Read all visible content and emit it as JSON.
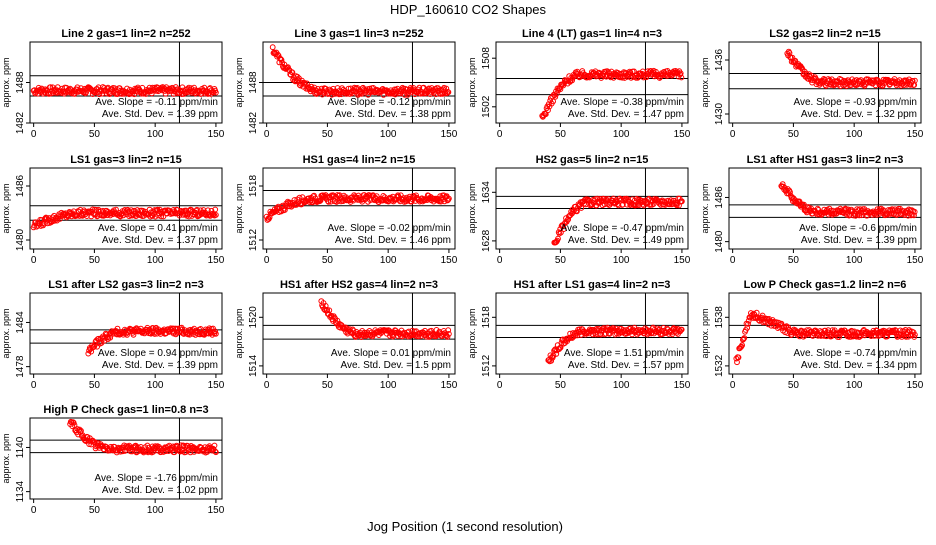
{
  "figure": {
    "title": "HDP_160610  CO2 Shapes",
    "xlabel": "Jog Position (1 second resolution)"
  },
  "colors": {
    "points": "#ff0000",
    "axes": "#000000",
    "background": "#ffffff"
  },
  "chart_data": [
    {
      "type": "scatter",
      "title": "Line 2 gas=1 lin=2 n=252",
      "ylabel": "approx. ppm",
      "xlim": [
        -3,
        155
      ],
      "ylim": [
        1482,
        1494
      ],
      "xticks": [
        0,
        50,
        100,
        150
      ],
      "yticks": [
        1482,
        1488
      ],
      "hlines": [
        1489,
        1486
      ],
      "vline": 120,
      "x_range": [
        0,
        150
      ],
      "y_levels": [
        1486.8
      ],
      "slope_text": "Ave. Slope = -0.11 ppm/min",
      "std_text": "Ave. Std. Dev. = 1.39 ppm"
    },
    {
      "type": "scatter",
      "title": "Line 3 gas=1 lin=3 n=252",
      "ylabel": "approx. ppm",
      "xlim": [
        -3,
        155
      ],
      "ylim": [
        1482,
        1494
      ],
      "xticks": [
        0,
        50,
        100,
        150
      ],
      "yticks": [
        1482,
        1488
      ],
      "hlines": [
        1488,
        1486
      ],
      "vline": 120,
      "x_range": [
        5,
        150
      ],
      "y_levels": [
        1493.0,
        1486.7
      ],
      "slope_text": "Ave. Slope = -0.12 ppm/min",
      "std_text": "Ave. Std. Dev. = 1.38 ppm"
    },
    {
      "type": "scatter",
      "title": "Line 4 (LT) gas=1 lin=4 n=3",
      "ylabel": "approx. ppm",
      "xlim": [
        -3,
        155
      ],
      "ylim": [
        1500,
        1510
      ],
      "xticks": [
        0,
        50,
        100,
        150
      ],
      "yticks": [
        1502,
        1508
      ],
      "hlines": [
        1505.5,
        1503.5
      ],
      "vline": 120,
      "x_range": [
        35,
        150
      ],
      "y_levels": [
        1500.5,
        1506.0
      ],
      "slope_text": "Ave. Slope = -0.38 ppm/min",
      "std_text": "Ave. Std. Dev. = 1.47 ppm"
    },
    {
      "type": "scatter",
      "title": "LS2 gas=2 lin=2 n=15",
      "ylabel": "approx. ppm",
      "xlim": [
        -3,
        155
      ],
      "ylim": [
        1429,
        1438
      ],
      "xticks": [
        0,
        50,
        100,
        150
      ],
      "yticks": [
        1430,
        1436
      ],
      "hlines": [
        1434.5,
        1432.8
      ],
      "vline": 120,
      "x_range": [
        45,
        150
      ],
      "y_levels": [
        1437.0,
        1433.5
      ],
      "slope_text": "Ave. Slope = -0.93 ppm/min",
      "std_text": "Ave. Std. Dev. = 1.32 ppm"
    },
    {
      "type": "scatter",
      "title": "LS1 gas=3 lin=2 n=15",
      "ylabel": "approx. ppm",
      "xlim": [
        -3,
        155
      ],
      "ylim": [
        1479,
        1488
      ],
      "xticks": [
        0,
        50,
        100,
        150
      ],
      "yticks": [
        1480,
        1486
      ],
      "hlines": [
        1483.8,
        1482.2
      ],
      "vline": 120,
      "x_range": [
        0,
        150
      ],
      "y_levels": [
        1481.5,
        1483.0
      ],
      "slope_text": "Ave. Slope = 0.41 ppm/min",
      "std_text": "Ave. Std. Dev. = 1.37 ppm"
    },
    {
      "type": "scatter",
      "title": "HS1 gas=4 lin=2 n=15",
      "ylabel": "approx. ppm",
      "xlim": [
        -3,
        155
      ],
      "ylim": [
        1511,
        1520
      ],
      "xticks": [
        0,
        50,
        100,
        150
      ],
      "yticks": [
        1512,
        1518
      ],
      "hlines": [
        1517.5,
        1515.8
      ],
      "vline": 120,
      "x_range": [
        0,
        150
      ],
      "y_levels": [
        1514.5,
        1516.6
      ],
      "slope_text": "Ave. Slope = -0.02 ppm/min",
      "std_text": "Ave. Std. Dev. = 1.46 ppm"
    },
    {
      "type": "scatter",
      "title": "HS2 gas=5 lin=2 n=15",
      "ylabel": "approx. ppm",
      "xlim": [
        -3,
        155
      ],
      "ylim": [
        1627,
        1637
      ],
      "xticks": [
        0,
        50,
        100,
        150
      ],
      "yticks": [
        1628,
        1634
      ],
      "hlines": [
        1633.5,
        1632.0
      ],
      "vline": 120,
      "x_range": [
        45,
        150
      ],
      "y_levels": [
        1627.5,
        1632.8
      ],
      "slope_text": "Ave. Slope = -0.47 ppm/min",
      "std_text": "Ave. Std. Dev. = 1.49 ppm"
    },
    {
      "type": "scatter",
      "title": "LS1 after HS1 gas=3 lin=2 n=3",
      "ylabel": "approx. ppm",
      "xlim": [
        -3,
        155
      ],
      "ylim": [
        1479,
        1490
      ],
      "xticks": [
        0,
        50,
        100,
        150
      ],
      "yticks": [
        1480,
        1486
      ],
      "hlines": [
        1485.0,
        1483.3
      ],
      "vline": 120,
      "x_range": [
        40,
        150
      ],
      "y_levels": [
        1488.0,
        1484.0
      ],
      "slope_text": "Ave. Slope = -0.6 ppm/min",
      "std_text": "Ave. Std. Dev. = 1.39 ppm"
    },
    {
      "type": "scatter",
      "title": "LS1 after LS2 gas=3 lin=2 n=3",
      "ylabel": "approx. ppm",
      "xlim": [
        -3,
        155
      ],
      "ylim": [
        1477,
        1488
      ],
      "xticks": [
        0,
        50,
        100,
        150
      ],
      "yticks": [
        1478,
        1484
      ],
      "hlines": [
        1483.0,
        1481.2
      ],
      "vline": 120,
      "x_range": [
        45,
        150
      ],
      "y_levels": [
        1480.0,
        1482.8
      ],
      "slope_text": "Ave. Slope = 0.94 ppm/min",
      "std_text": "Ave. Std. Dev. = 1.39 ppm"
    },
    {
      "type": "scatter",
      "title": "HS1 after HS2 gas=4 lin=2 n=3",
      "ylabel": "approx. ppm",
      "xlim": [
        -3,
        155
      ],
      "ylim": [
        1513,
        1523
      ],
      "xticks": [
        0,
        50,
        100,
        150
      ],
      "yticks": [
        1514,
        1520
      ],
      "hlines": [
        1519.0,
        1517.3
      ],
      "vline": 120,
      "x_range": [
        45,
        150
      ],
      "y_levels": [
        1522.0,
        1518.0
      ],
      "slope_text": "Ave. Slope = 0.01 ppm/min",
      "std_text": "Ave. Std. Dev. = 1.5 ppm"
    },
    {
      "type": "scatter",
      "title": "HS1 after LS1 gas=4 lin=2 n=3",
      "ylabel": "approx. ppm",
      "xlim": [
        -3,
        155
      ],
      "ylim": [
        1511,
        1521
      ],
      "xticks": [
        0,
        50,
        100,
        150
      ],
      "yticks": [
        1512,
        1518
      ],
      "hlines": [
        1517.0,
        1515.5
      ],
      "vline": 120,
      "x_range": [
        40,
        150
      ],
      "y_levels": [
        1512.5,
        1516.3
      ],
      "slope_text": "Ave. Slope = 1.51 ppm/min",
      "std_text": "Ave. Std. Dev. = 1.57 ppm"
    },
    {
      "type": "scatter",
      "title": "Low P Check gas=1.2 lin=2 n=6",
      "ylabel": "approx. ppm",
      "xlim": [
        -3,
        155
      ],
      "ylim": [
        1531,
        1541
      ],
      "xticks": [
        0,
        50,
        100,
        150
      ],
      "yticks": [
        1532,
        1538
      ],
      "hlines": [
        1537.0,
        1535.5
      ],
      "vline": 120,
      "x_range": [
        3,
        150
      ],
      "y_levels": [
        1532.5,
        1538.5,
        1536.0
      ],
      "slope_text": "Ave. Slope = -0.74 ppm/min",
      "std_text": "Ave. Std. Dev. = 1.34 ppm"
    },
    {
      "type": "scatter",
      "title": "High P Check gas=1 lin=0.8 n=3",
      "ylabel": "approx. ppm",
      "xlim": [
        -3,
        155
      ],
      "ylim": [
        1133,
        1144
      ],
      "xticks": [
        0,
        50,
        100,
        150
      ],
      "yticks": [
        1134,
        1140
      ],
      "hlines": [
        1141.0,
        1139.3
      ],
      "vline": 120,
      "x_range": [
        30,
        150
      ],
      "y_levels": [
        1143.5,
        1139.8
      ],
      "slope_text": "Ave. Slope = -1.76 ppm/min",
      "std_text": "Ave. Std. Dev. = 1.02 ppm"
    }
  ]
}
